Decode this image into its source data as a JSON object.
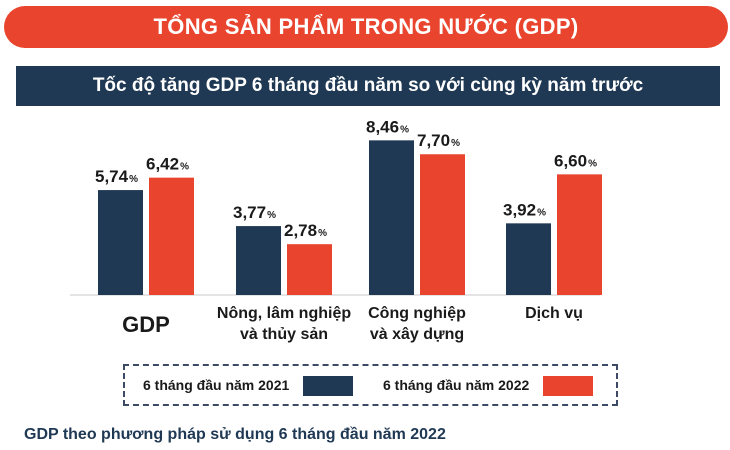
{
  "header": {
    "title": "TỔNG SẢN PHẨM TRONG NƯỚC (GDP)"
  },
  "subtitle": "Tốc độ tăng GDP 6 tháng đầu năm so với cùng kỳ năm trước",
  "colors": {
    "header_bg": "#e9442e",
    "subtitle_bg": "#1f3853",
    "series_2021": "#1f3853",
    "series_2022": "#e9442e"
  },
  "chart_data": {
    "type": "bar",
    "categories": [
      "GDP",
      "Nông, lâm nghiệp và thủy sản",
      "Công nghiệp và xây dựng",
      "Dịch vụ"
    ],
    "category_lines": [
      [
        "GDP"
      ],
      [
        "Nông, lâm nghiệp",
        "và thủy sản"
      ],
      [
        "Công nghiệp",
        "và xây dựng"
      ],
      [
        "Dịch vụ"
      ]
    ],
    "series": [
      {
        "name": "6 tháng đầu năm 2021",
        "values": [
          5.74,
          3.77,
          8.46,
          3.92
        ],
        "labels": [
          "5,74",
          "3,77",
          "8,46",
          "3,92"
        ],
        "color": "#1f3853"
      },
      {
        "name": "6 tháng đầu năm 2022",
        "values": [
          6.42,
          2.78,
          7.7,
          6.6
        ],
        "labels": [
          "6,42",
          "2,78",
          "7,70",
          "6,60"
        ],
        "color": "#e9442e"
      }
    ],
    "unit": "%",
    "ylim": [
      0,
      9.3
    ],
    "legend_position": "bottom",
    "grid": false
  },
  "footer": "GDP theo phương pháp sử dụng 6 tháng đầu năm 2022"
}
